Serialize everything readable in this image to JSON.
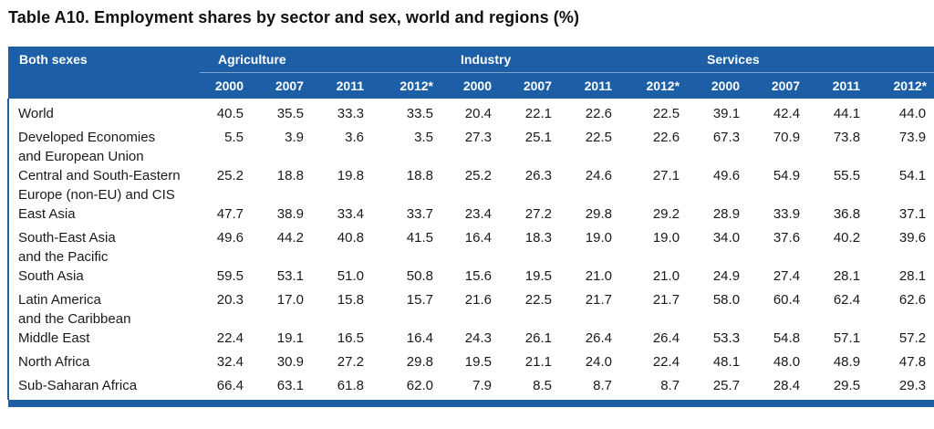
{
  "title": "Table A10.  Employment shares by sector and sex, world and regions (%)",
  "header": {
    "corner": "Both sexes",
    "groups": [
      "Agriculture",
      "Industry",
      "Services"
    ],
    "years": [
      "2000",
      "2007",
      "2011",
      "2012*"
    ]
  },
  "rows": [
    {
      "region": [
        "World"
      ],
      "values": [
        "40.5",
        "35.5",
        "33.3",
        "33.5",
        "20.4",
        "22.1",
        "22.6",
        "22.5",
        "39.1",
        "42.4",
        "44.1",
        "44.0"
      ]
    },
    {
      "region": [
        "Developed Economies",
        "and European Union"
      ],
      "values": [
        "5.5",
        "3.9",
        "3.6",
        "3.5",
        "27.3",
        "25.1",
        "22.5",
        "22.6",
        "67.3",
        "70.9",
        "73.8",
        "73.9"
      ]
    },
    {
      "region": [
        "Central and South-Eastern",
        "Europe (non-EU) and CIS"
      ],
      "values": [
        "25.2",
        "18.8",
        "19.8",
        "18.8",
        "25.2",
        "26.3",
        "24.6",
        "27.1",
        "49.6",
        "54.9",
        "55.5",
        "54.1"
      ]
    },
    {
      "region": [
        "East Asia"
      ],
      "values": [
        "47.7",
        "38.9",
        "33.4",
        "33.7",
        "23.4",
        "27.2",
        "29.8",
        "29.2",
        "28.9",
        "33.9",
        "36.8",
        "37.1"
      ]
    },
    {
      "region": [
        "South-East Asia",
        "and the Pacific"
      ],
      "values": [
        "49.6",
        "44.2",
        "40.8",
        "41.5",
        "16.4",
        "18.3",
        "19.0",
        "19.0",
        "34.0",
        "37.6",
        "40.2",
        "39.6"
      ]
    },
    {
      "region": [
        "South Asia"
      ],
      "values": [
        "59.5",
        "53.1",
        "51.0",
        "50.8",
        "15.6",
        "19.5",
        "21.0",
        "21.0",
        "24.9",
        "27.4",
        "28.1",
        "28.1"
      ]
    },
    {
      "region": [
        "Latin America",
        "and the Caribbean"
      ],
      "values": [
        "20.3",
        "17.0",
        "15.8",
        "15.7",
        "21.6",
        "22.5",
        "21.7",
        "21.7",
        "58.0",
        "60.4",
        "62.4",
        "62.6"
      ]
    },
    {
      "region": [
        "Middle East"
      ],
      "values": [
        "22.4",
        "19.1",
        "16.5",
        "16.4",
        "24.3",
        "26.1",
        "26.4",
        "26.4",
        "53.3",
        "54.8",
        "57.1",
        "57.2"
      ]
    },
    {
      "region": [
        "North Africa"
      ],
      "values": [
        "32.4",
        "30.9",
        "27.2",
        "29.8",
        "19.5",
        "21.1",
        "24.0",
        "22.4",
        "48.1",
        "48.0",
        "48.9",
        "47.8"
      ]
    },
    {
      "region": [
        "Sub-Saharan Africa"
      ],
      "values": [
        "66.4",
        "63.1",
        "61.8",
        "62.0",
        "7.9",
        "8.5",
        "8.7",
        "8.7",
        "25.7",
        "28.4",
        "29.5",
        "29.3"
      ]
    }
  ],
  "colors": {
    "header_bg": "#1c5fa6",
    "header_text": "#ffffff"
  }
}
